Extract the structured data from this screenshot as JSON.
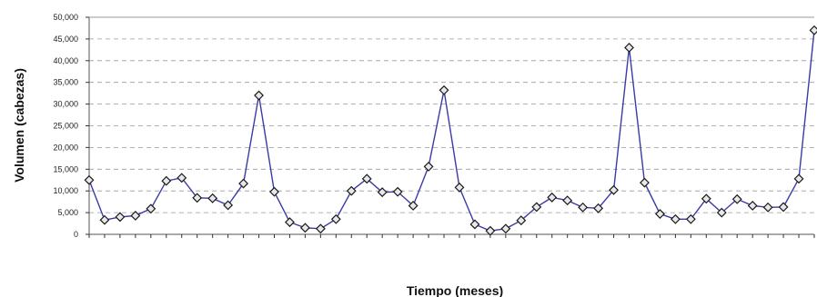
{
  "chart_data": {
    "type": "line",
    "title": "",
    "xlabel": "Tiempo (meses)",
    "ylabel": "Volumen (cabezas)",
    "ylim": [
      0,
      50000
    ],
    "yticks": [
      "0",
      "5,000",
      "10,000",
      "15,000",
      "20,000",
      "25,000",
      "30,000",
      "35,000",
      "40,000",
      "45,000",
      "50,000"
    ],
    "grid": true,
    "legend": "none",
    "line_color": "#3a3aa8",
    "marker": "diamond",
    "series": [
      {
        "values": [
          12500,
          3300,
          4000,
          4300,
          5900,
          12300,
          13000,
          8400,
          8300,
          6700,
          11700,
          32000,
          9800,
          2800,
          1500,
          1300,
          3500,
          10000,
          12800,
          9700,
          9800,
          6600,
          15600,
          33200,
          10800,
          2300,
          800,
          1300,
          3200,
          6300,
          8500,
          7800,
          6200,
          6000,
          10200,
          43000,
          11900,
          4700,
          3500,
          3500,
          8200,
          5000,
          8100,
          6600,
          6200,
          6300,
          12800,
          47000
        ]
      }
    ]
  }
}
